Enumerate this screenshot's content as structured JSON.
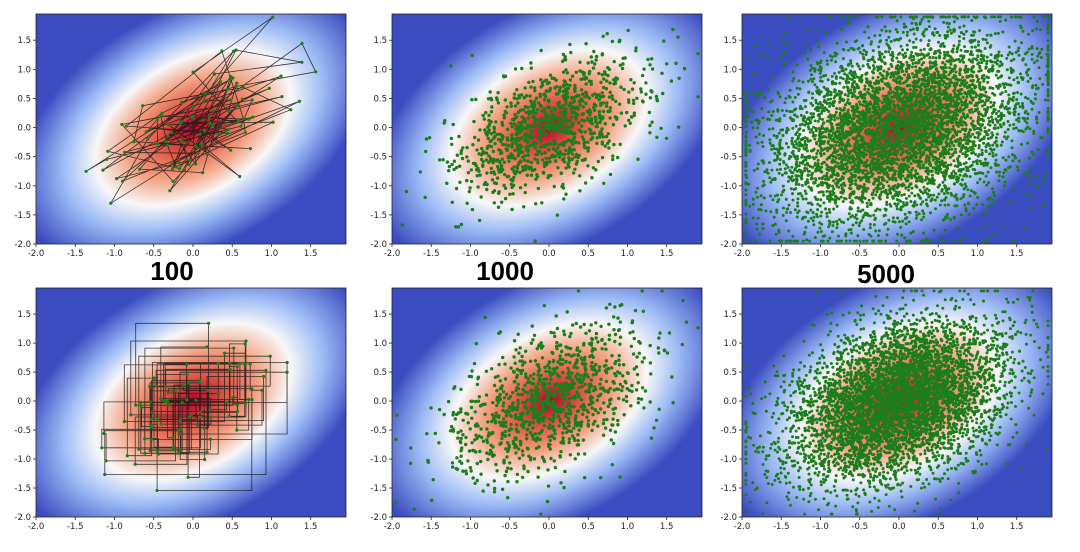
{
  "figure": {
    "labels": {
      "n100": "100",
      "n1000": "1000",
      "n5000": "5000"
    }
  },
  "colors": {
    "point": "#1d7d1d",
    "path": "#1a1a1a",
    "center": "#b40426",
    "edge": "#3b4cc0",
    "mid": "#f7f7f7"
  },
  "chart_data": [
    {
      "id": "top-100",
      "type": "scatter",
      "title": "100",
      "samples": 100,
      "connect": "line",
      "x_ticks": [
        "-2.0",
        "-1.5",
        "-1.0",
        "-0.5",
        "0.0",
        "0.5",
        "1.0",
        "1.5"
      ],
      "y_ticks": [
        "-2.0",
        "-1.5",
        "-1.0",
        "-0.5",
        "0.0",
        "0.5",
        "1.0",
        "1.5"
      ],
      "xlim": [
        -2.0,
        1.95
      ],
      "ylim": [
        -2.0,
        1.95
      ],
      "distribution": {
        "mean": [
          0,
          0
        ],
        "sd": [
          0.6,
          0.6
        ],
        "correlation": 0.6
      }
    },
    {
      "id": "top-1000",
      "type": "scatter",
      "title": "1000",
      "samples": 1000,
      "connect": "none",
      "x_ticks": [
        "-2.0",
        "-1.5",
        "-1.0",
        "-0.5",
        "0.0",
        "0.5",
        "1.0",
        "1.5"
      ],
      "y_ticks": [
        "-2.0",
        "-1.5",
        "-1.0",
        "-0.5",
        "0.0",
        "0.5",
        "1.0",
        "1.5"
      ],
      "xlim": [
        -2.0,
        1.95
      ],
      "ylim": [
        -2.0,
        1.95
      ],
      "distribution": {
        "mean": [
          0,
          0
        ],
        "sd": [
          0.6,
          0.6
        ],
        "correlation": 0.5
      }
    },
    {
      "id": "top-5000",
      "type": "scatter",
      "title": "5000",
      "samples": 5000,
      "connect": "none",
      "x_ticks": [
        "-2.0",
        "-1.5",
        "-1.0",
        "-0.5",
        "0.0",
        "0.5",
        "1.0",
        "1.5"
      ],
      "y_ticks": [
        "-2.0",
        "-1.5",
        "-1.0",
        "-0.5",
        "0.0",
        "0.5",
        "1.0",
        "1.5"
      ],
      "xlim": [
        -2.0,
        1.95
      ],
      "ylim": [
        -2.0,
        1.95
      ],
      "distribution": {
        "mean": [
          0,
          0
        ],
        "sd": [
          0.85,
          0.85
        ],
        "correlation": 0.3
      }
    },
    {
      "id": "bottom-100",
      "type": "scatter",
      "title": "",
      "samples": 100,
      "connect": "step",
      "x_ticks": [
        "-2.0",
        "-1.5",
        "-1.0",
        "-0.5",
        "0.0",
        "0.5",
        "1.0",
        "1.5"
      ],
      "y_ticks": [
        "-2.0",
        "-1.5",
        "-1.0",
        "-0.5",
        "0.0",
        "0.5",
        "1.0",
        "1.5"
      ],
      "xlim": [
        -2.0,
        1.95
      ],
      "ylim": [
        -2.0,
        1.95
      ],
      "distribution": {
        "mean": [
          0,
          0
        ],
        "sd": [
          0.6,
          0.6
        ],
        "correlation": 0.6
      }
    },
    {
      "id": "bottom-1000",
      "type": "scatter",
      "title": "",
      "samples": 1000,
      "connect": "none",
      "x_ticks": [
        "-2.0",
        "-1.5",
        "-1.0",
        "-0.5",
        "0.0",
        "0.5",
        "1.0",
        "1.5"
      ],
      "y_ticks": [
        "-2.0",
        "-1.5",
        "-1.0",
        "-0.5",
        "0.0",
        "0.5",
        "1.0",
        "1.5"
      ],
      "xlim": [
        -2.0,
        1.95
      ],
      "ylim": [
        -2.0,
        1.95
      ],
      "distribution": {
        "mean": [
          0,
          0
        ],
        "sd": [
          0.65,
          0.65
        ],
        "correlation": 0.45
      }
    },
    {
      "id": "bottom-5000",
      "type": "scatter",
      "title": "",
      "samples": 5000,
      "connect": "none",
      "x_ticks": [
        "-2.0",
        "-1.5",
        "-1.0",
        "-0.5",
        "0.0",
        "0.5",
        "1.0",
        "1.5"
      ],
      "y_ticks": [
        "-2.0",
        "-1.5",
        "-1.0",
        "-0.5",
        "0.0",
        "0.5",
        "1.0",
        "1.5"
      ],
      "xlim": [
        -2.0,
        1.95
      ],
      "ylim": [
        -2.0,
        1.95
      ],
      "distribution": {
        "mean": [
          0,
          0
        ],
        "sd": [
          0.7,
          0.7
        ],
        "correlation": 0.35
      }
    }
  ]
}
